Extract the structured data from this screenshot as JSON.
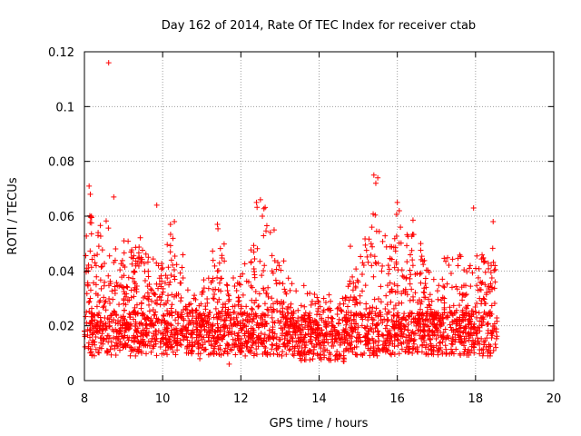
{
  "chart_data": {
    "type": "scatter",
    "title": "Day 162 of 2014, Rate Of TEC Index for receiver ctab",
    "xlabel": "GPS time / hours",
    "ylabel": "ROTI / TECUs",
    "xlim": [
      8,
      20
    ],
    "ylim": [
      0,
      0.12
    ],
    "xticks": [
      8,
      10,
      12,
      14,
      16,
      18,
      20
    ],
    "yticks": [
      0,
      0.02,
      0.04,
      0.06,
      0.08,
      0.1,
      0.12
    ],
    "xtick_labels": [
      "8",
      "10",
      "12",
      "14",
      "16",
      "18",
      "20"
    ],
    "ytick_labels": [
      "0",
      "0.02",
      "0.04",
      "0.06",
      "0.08",
      "0.1",
      "0.12"
    ],
    "grid": true,
    "marker": "+",
    "marker_color": "#ff0000",
    "series": [
      {
        "name": "ROTI",
        "x": [
          8.0,
          8.05,
          8.1,
          8.12,
          8.15,
          8.2,
          8.25,
          8.3,
          8.35,
          8.4,
          8.5,
          8.62,
          8.8,
          9.0,
          9.2,
          9.4,
          9.6,
          9.8,
          10.0,
          10.2,
          10.4,
          10.6,
          10.8,
          11.0,
          11.2,
          11.4,
          11.6,
          11.8,
          12.0,
          12.2,
          12.4,
          12.6,
          12.8,
          13.0,
          13.2,
          13.4,
          13.6,
          13.8,
          14.0,
          14.2,
          14.4,
          14.6,
          14.8,
          15.0,
          15.2,
          15.4,
          15.6,
          15.8,
          16.0,
          16.2,
          16.4,
          16.6,
          16.8,
          17.0,
          17.2,
          17.4,
          17.6,
          17.8,
          18.0,
          18.2,
          18.4,
          18.5,
          8.15,
          8.18,
          8.75,
          9.85,
          10.3,
          11.4,
          12.5,
          12.55,
          12.85,
          15.45,
          15.5,
          16.05,
          16.08,
          17.95,
          18.45,
          15.35,
          16.6,
          13.9,
          10.95,
          11.7,
          14.7,
          18.2
        ],
        "y": [
          0.018,
          0.025,
          0.04,
          0.071,
          0.03,
          0.022,
          0.019,
          0.035,
          0.054,
          0.02,
          0.015,
          0.116,
          0.021,
          0.028,
          0.033,
          0.045,
          0.019,
          0.024,
          0.017,
          0.057,
          0.023,
          0.016,
          0.03,
          0.02,
          0.018,
          0.04,
          0.022,
          0.015,
          0.019,
          0.036,
          0.065,
          0.042,
          0.025,
          0.028,
          0.02,
          0.018,
          0.022,
          0.016,
          0.014,
          0.017,
          0.015,
          0.03,
          0.049,
          0.036,
          0.028,
          0.075,
          0.04,
          0.025,
          0.065,
          0.032,
          0.042,
          0.018,
          0.022,
          0.019,
          0.03,
          0.034,
          0.02,
          0.017,
          0.025,
          0.03,
          0.042,
          0.036,
          0.068,
          0.06,
          0.067,
          0.064,
          0.058,
          0.057,
          0.066,
          0.06,
          0.055,
          0.072,
          0.074,
          0.062,
          0.056,
          0.063,
          0.058,
          0.056,
          0.05,
          0.028,
          0.008,
          0.006,
          0.024,
          0.01
        ]
      }
    ]
  }
}
